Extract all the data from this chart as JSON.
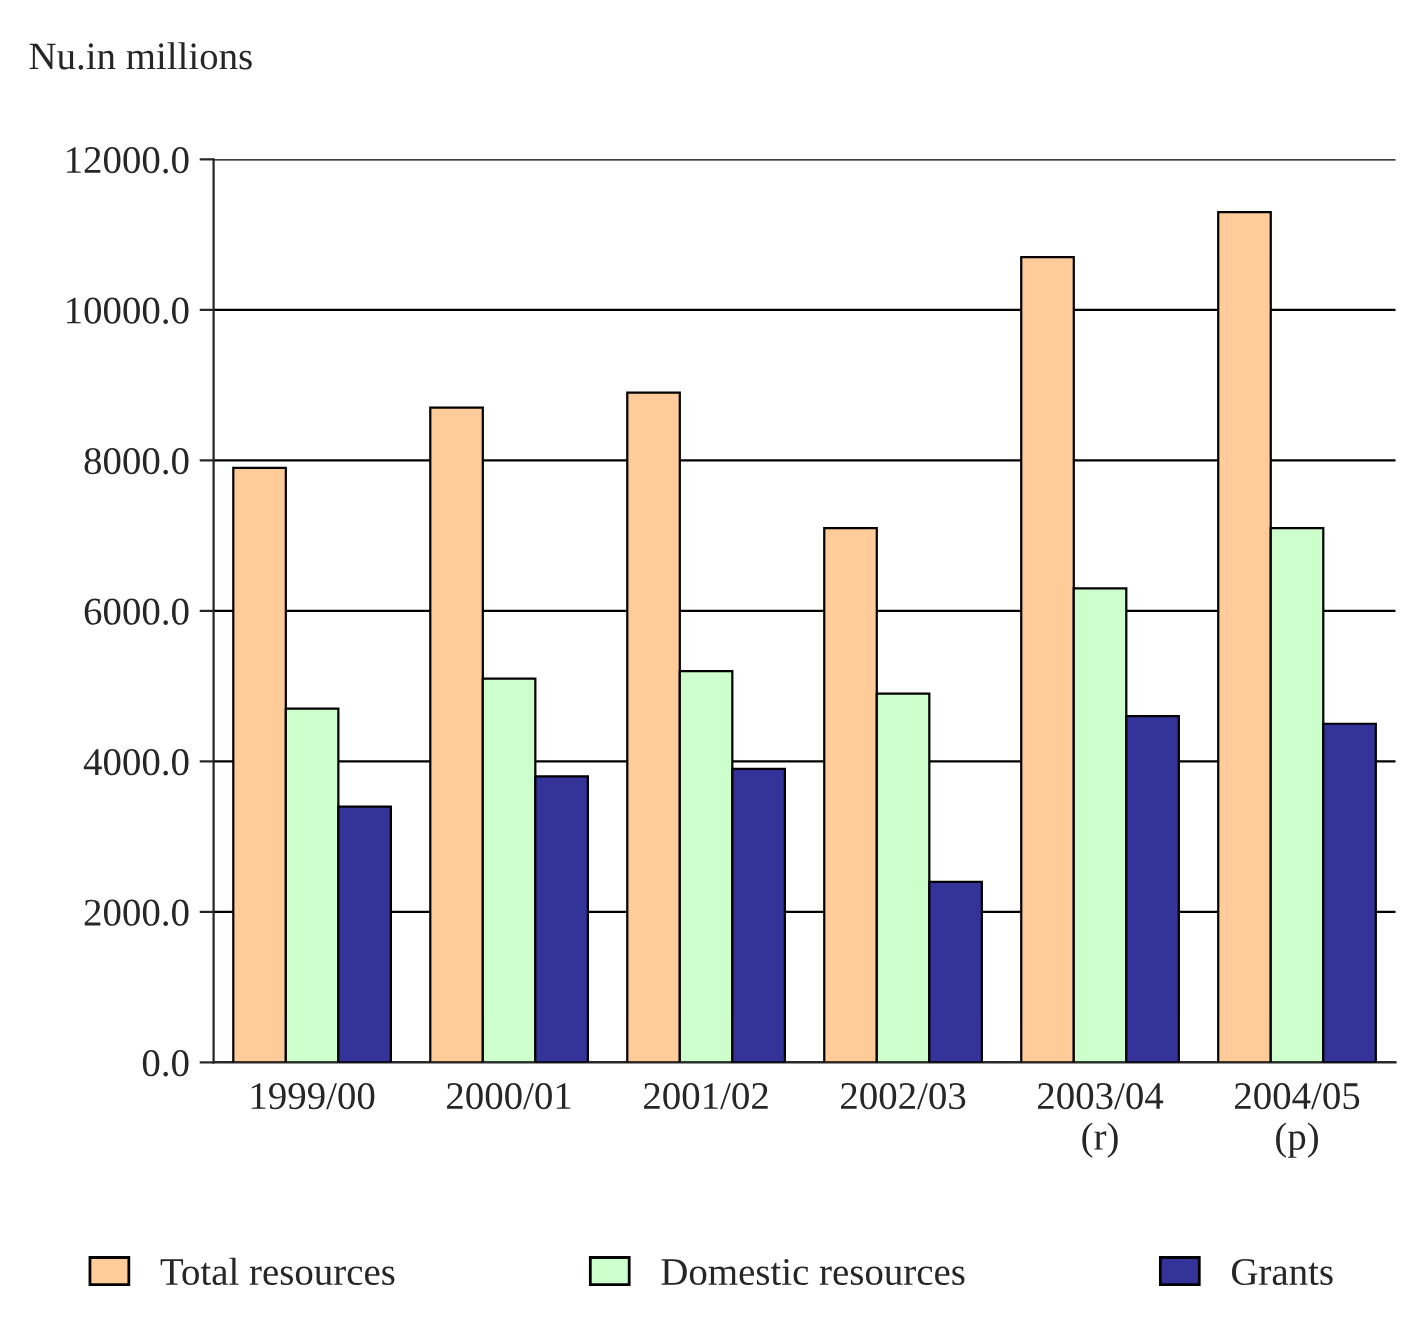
{
  "chart_data": {
    "type": "bar",
    "ylabel": "Nu.in millions",
    "categories": [
      "1999/00",
      "2000/01",
      "2001/02",
      "2002/03",
      "2003/04\n(r)",
      "2004/05\n(p)"
    ],
    "series": [
      {
        "name": "Total resources",
        "color": "#ffcc99",
        "values": [
          7900,
          8700,
          8900,
          7100,
          10700,
          11300
        ]
      },
      {
        "name": "Domestic resources",
        "color": "#ccffcc",
        "values": [
          4700,
          5100,
          5200,
          4900,
          6300,
          7100
        ]
      },
      {
        "name": "Grants",
        "color": "#333399",
        "values": [
          3400,
          3800,
          3900,
          2400,
          4600,
          4500
        ]
      }
    ],
    "ylim": [
      0,
      12000
    ],
    "yticks": [
      {
        "value": 0,
        "label": "0.0"
      },
      {
        "value": 2000,
        "label": "2000.0"
      },
      {
        "value": 4000,
        "label": "4000.0"
      },
      {
        "value": 6000,
        "label": "6000.0"
      },
      {
        "value": 8000,
        "label": "8000.0"
      },
      {
        "value": 10000,
        "label": "10000.0"
      },
      {
        "value": 12000,
        "label": "12000.0"
      }
    ],
    "grid": "y",
    "legend": "bottom"
  }
}
